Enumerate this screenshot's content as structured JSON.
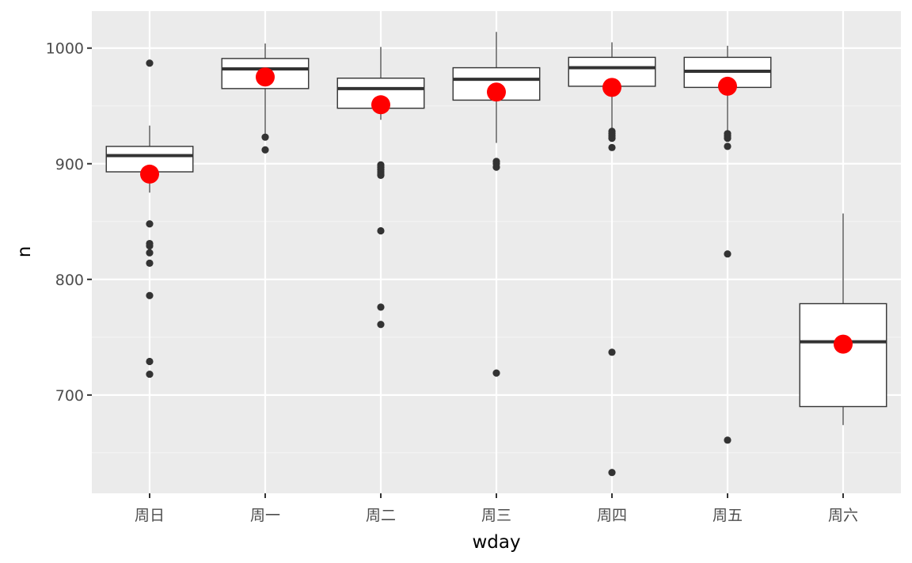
{
  "chart_data": {
    "type": "boxplot",
    "xlabel": "wday",
    "ylabel": "n",
    "ylim": [
      615,
      1032
    ],
    "y_ticks": [
      700,
      800,
      900,
      1000
    ],
    "categories": [
      "周日",
      "周一",
      "周二",
      "周三",
      "周四",
      "周五",
      "周六"
    ],
    "boxes": [
      {
        "category": "周日",
        "lower_whisker": 875,
        "q1": 893,
        "median": 907,
        "q3": 915,
        "upper_whisker": 933,
        "mean": 891,
        "outliers": [
          987,
          848,
          831,
          829,
          823,
          814,
          786,
          729,
          718
        ]
      },
      {
        "category": "周一",
        "lower_whisker": 924,
        "q1": 965,
        "median": 982,
        "q3": 991,
        "upper_whisker": 1004,
        "mean": 975,
        "outliers": [
          923,
          912
        ]
      },
      {
        "category": "周二",
        "lower_whisker": 938,
        "q1": 948,
        "median": 965,
        "q3": 974,
        "upper_whisker": 1001,
        "mean": 951,
        "outliers": [
          899,
          897,
          895,
          893,
          891,
          890,
          842,
          776,
          761
        ]
      },
      {
        "category": "周三",
        "lower_whisker": 918,
        "q1": 955,
        "median": 973,
        "q3": 983,
        "upper_whisker": 1014,
        "mean": 962,
        "outliers": [
          902,
          900,
          897,
          719
        ]
      },
      {
        "category": "周四",
        "lower_whisker": 930,
        "q1": 967,
        "median": 983,
        "q3": 992,
        "upper_whisker": 1005,
        "mean": 966,
        "outliers": [
          928,
          926,
          924,
          922,
          914,
          737,
          633
        ]
      },
      {
        "category": "周五",
        "lower_whisker": 928,
        "q1": 966,
        "median": 980,
        "q3": 992,
        "upper_whisker": 1002,
        "mean": 967,
        "outliers": [
          926,
          924,
          922,
          915,
          822,
          661
        ]
      },
      {
        "category": "周六",
        "lower_whisker": 674,
        "q1": 690,
        "median": 746,
        "q3": 779,
        "upper_whisker": 857,
        "mean": 744,
        "outliers": []
      }
    ],
    "colors": {
      "panel": "#ebebeb",
      "grid_major": "#ffffff",
      "grid_minor": "#f5f5f5",
      "box_fill": "#ffffff",
      "box_line": "#333333",
      "outlier": "#333333",
      "mean_point": "#ff0000"
    },
    "grid": true,
    "legend": "none"
  }
}
